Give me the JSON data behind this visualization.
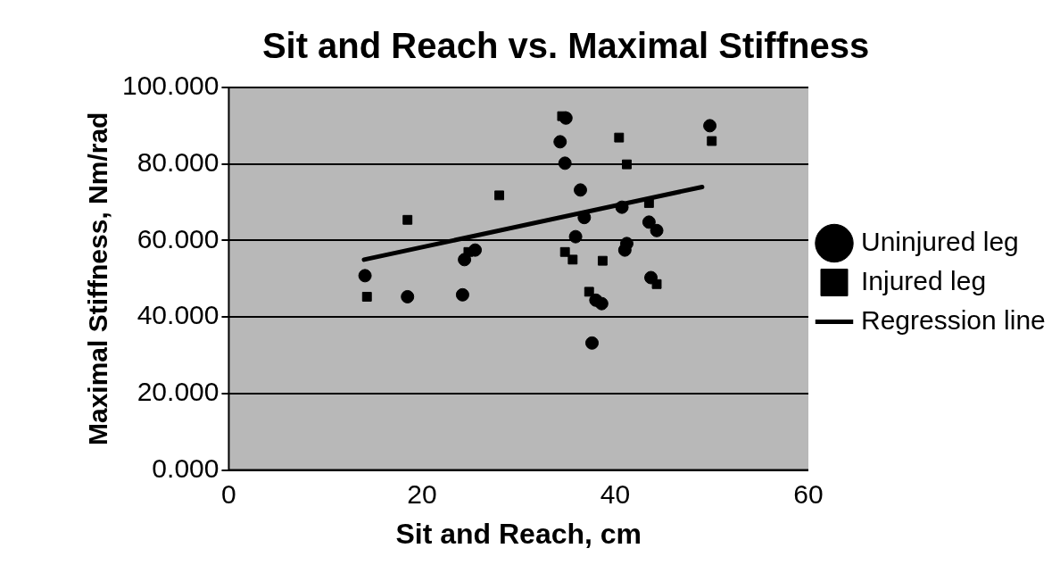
{
  "chart_data": {
    "type": "scatter",
    "title": "Sit and Reach vs. Maximal Stiffness",
    "xlabel": "Sit and Reach, cm",
    "ylabel": "Maximal Stiffness, Nm/rad",
    "xlim": [
      0,
      60
    ],
    "xticks": [
      0,
      20,
      40,
      60
    ],
    "ylim": [
      0,
      100
    ],
    "yticks": [
      {
        "value": 0,
        "label": "0.000"
      },
      {
        "value": 20,
        "label": "20.000"
      },
      {
        "value": 40,
        "label": "40.000"
      },
      {
        "value": 60,
        "label": "60.000"
      },
      {
        "value": 80,
        "label": "80.000"
      },
      {
        "value": 100,
        "label": "100.000"
      }
    ],
    "grid": "y",
    "legend": "right",
    "series": [
      {
        "name": "Uninjured leg",
        "color": "#000000",
        "marker": "circle",
        "x": [
          14.1,
          18.5,
          24.2,
          24.4,
          25.5,
          34.3,
          34.8,
          36.4,
          34.9,
          36.8,
          35.9,
          38,
          38.6,
          37.6,
          40.7,
          41.2,
          41,
          43.5,
          44.3,
          43.7,
          49.8
        ],
        "values": [
          50.8,
          45.3,
          45.8,
          55,
          57.5,
          85.8,
          80.2,
          73.2,
          92,
          66,
          61,
          44.4,
          43.5,
          33.2,
          68.7,
          59.2,
          57.5,
          64.8,
          62.6,
          50.3,
          90
        ]
      },
      {
        "name": "Injured leg",
        "color": "#000000",
        "marker": "square",
        "x": [
          14.3,
          18.5,
          24.8,
          28,
          34.5,
          34.8,
          35.6,
          37.3,
          38.7,
          40.4,
          41.2,
          43.5,
          44.3,
          50
        ],
        "values": [
          45.3,
          65.4,
          57,
          71.8,
          92.5,
          57,
          55,
          46.6,
          54.7,
          86.9,
          79.9,
          69.8,
          48.6,
          86
        ]
      },
      {
        "name": "Regression line",
        "type": "line",
        "color": "#000000",
        "marker": "none",
        "x": [
          14,
          49
        ],
        "values": [
          55,
          74
        ]
      }
    ]
  }
}
